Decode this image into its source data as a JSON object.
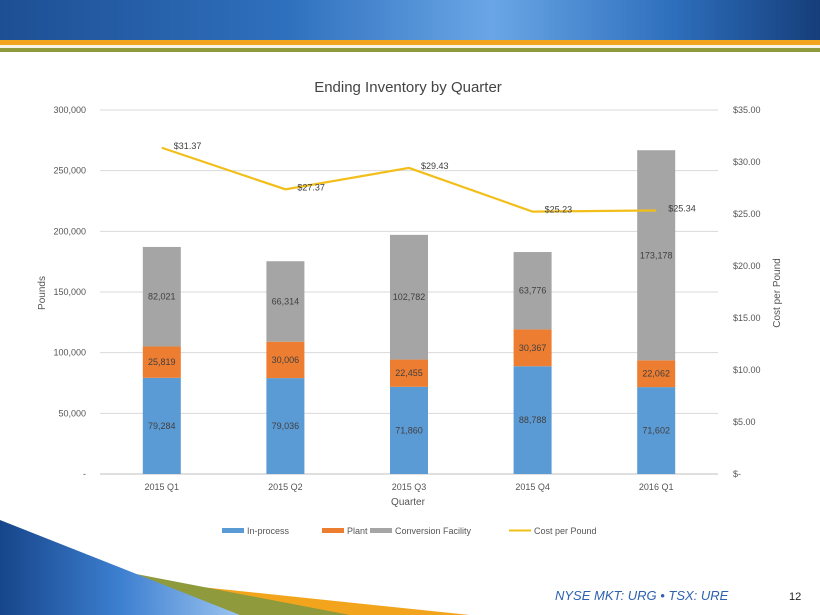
{
  "chart_data": {
    "type": "bar",
    "title": "Ending Inventory  by Quarter",
    "xlabel": "Quarter",
    "ylabel": "Pounds",
    "y2label": "Cost  per Pound",
    "categories": [
      "2015 Q1",
      "2015 Q2",
      "2015 Q3",
      "2015 Q4",
      "2016 Q1"
    ],
    "ylim": [
      0,
      300000
    ],
    "y2lim": [
      0,
      35
    ],
    "yticks": [
      0,
      50000,
      100000,
      150000,
      200000,
      250000,
      300000
    ],
    "ytick_labels": [
      "-",
      "50,000",
      "100,000",
      "150,000",
      "200,000",
      "250,000",
      "300,000"
    ],
    "y2ticks": [
      0,
      5,
      10,
      15,
      20,
      25,
      30,
      35
    ],
    "y2tick_labels": [
      "$-",
      "$5.00",
      "$10.00",
      "$15.00",
      "$20.00",
      "$25.00",
      "$30.00",
      "$35.00"
    ],
    "stacked": true,
    "series": [
      {
        "name": "In-process",
        "color": "#5b9bd5",
        "values": [
          79284,
          79036,
          71860,
          88788,
          71602
        ],
        "labels": [
          "79,284",
          "79,036",
          "71,860",
          "88,788",
          "71,602"
        ]
      },
      {
        "name": "Plant",
        "color": "#ed7d31",
        "values": [
          25819,
          30006,
          22455,
          30367,
          22062
        ],
        "labels": [
          "25,819",
          "30,006",
          "22,455",
          "30,367",
          "22,062"
        ]
      },
      {
        "name": "Conversion Facility",
        "color": "#a5a5a5",
        "values": [
          82021,
          66314,
          102782,
          63776,
          173178
        ],
        "labels": [
          "82,021",
          "66,314",
          "102,782",
          "63,776",
          "173,178"
        ]
      }
    ],
    "line_series": {
      "name": "Cost per Pound",
      "color": "#f2bf1a",
      "axis": "secondary",
      "values": [
        31.37,
        27.37,
        29.43,
        25.23,
        25.34
      ],
      "labels": [
        "$31.37",
        "$27.37",
        "$29.43",
        "$25.23",
        "$25.34"
      ]
    },
    "legend_position": "bottom",
    "grid": true
  },
  "footer": {
    "ticker": "NYSE MKT: URG • TSX: URE",
    "page_number": "12"
  }
}
